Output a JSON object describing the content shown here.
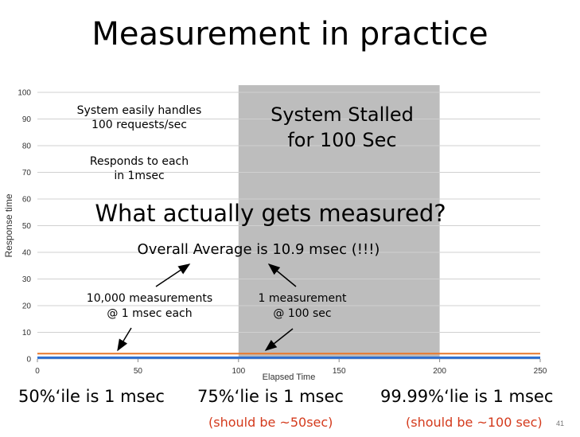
{
  "slide": {
    "title": "Measurement in practice",
    "stall_label_line1": "System Stalled",
    "stall_label_line2": "for 100 Sec",
    "note1_line1": "System easily handles",
    "note1_line2": "100 requests/sec",
    "note2_line1": "Responds to each",
    "note2_line2": "in 1msec",
    "question": "What actually gets measured?",
    "overall_average": "Overall Average is 10.9 msec (!!!)",
    "meas_left_line1": "10,000 measurements",
    "meas_left_line2": "@ 1 msec each",
    "meas_right_line1": "1 measurement",
    "meas_right_line2": "@ 100 sec",
    "p50": "50%‘ile is 1 msec",
    "p75": "75%‘lie is 1 msec",
    "p9999": "99.99%‘lie is 1 msec",
    "p75_note": "(should be ~50sec)",
    "p9999_note": "(should be ~100 sec)",
    "page_number": "41"
  },
  "colors": {
    "stall_region": "#bdbdbd",
    "grid": "#d0d0d0",
    "series_blue": "#2e6fd0",
    "series_orange": "#e8782a",
    "note_red": "#d43a1c"
  },
  "chart_data": {
    "type": "line",
    "xlabel": "Elapsed Time",
    "ylabel": "Response time",
    "xlim": [
      0,
      250
    ],
    "ylim": [
      0,
      100
    ],
    "x_ticks": [
      "0",
      "50",
      "100",
      "150",
      "200",
      "250"
    ],
    "y_ticks": [
      "0",
      "10",
      "20",
      "30",
      "40",
      "50",
      "60",
      "70",
      "80",
      "90",
      "100"
    ],
    "grid": true,
    "shaded_region": {
      "x_start": 100,
      "x_end": 200
    },
    "series": [
      {
        "x": [
          0,
          250
        ],
        "y": [
          0.5,
          0.5
        ],
        "color": "#2e6fd0"
      },
      {
        "x": [
          0,
          250
        ],
        "y": [
          2,
          2
        ],
        "color": "#e8782a"
      }
    ]
  }
}
